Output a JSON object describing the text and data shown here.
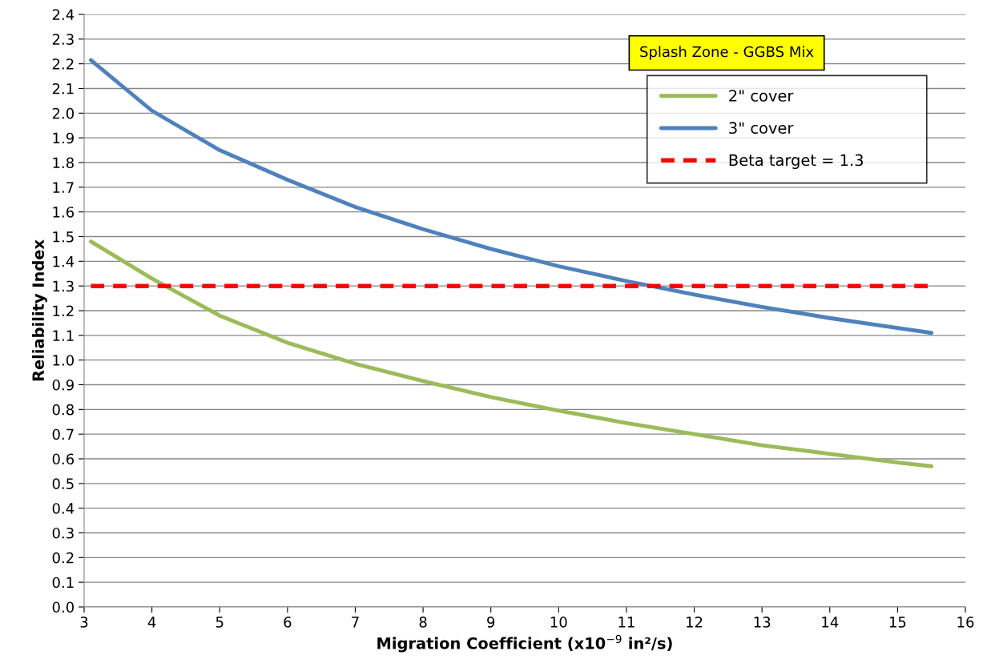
{
  "chart_data": {
    "type": "line",
    "xlabel": "Migration Coefficient (x10$^{−9}$ in²/s)",
    "ylabel": "Reliability Index",
    "legend_title": "Splash Zone - GGBS Mix",
    "xlim": [
      3,
      16
    ],
    "xticks": [
      3,
      4,
      5,
      6,
      7,
      8,
      9,
      10,
      11,
      12,
      13,
      14,
      15,
      16
    ],
    "ylim": [
      0,
      2.4
    ],
    "yticks": [
      {
        "value": 0,
        "label": "0.0"
      },
      {
        "value": 0.1,
        "label": "0.1"
      },
      {
        "value": 0.2,
        "label": "0.2"
      },
      {
        "value": 0.3,
        "label": "0.3"
      },
      {
        "value": 0.4,
        "label": "0.4"
      },
      {
        "value": 0.5,
        "label": "0.5"
      },
      {
        "value": 0.6,
        "label": "0.6"
      },
      {
        "value": 0.7,
        "label": "0.7"
      },
      {
        "value": 0.8,
        "label": "0.8"
      },
      {
        "value": 0.9,
        "label": "0.9"
      },
      {
        "value": 1,
        "label": "1.0"
      },
      {
        "value": 1.1,
        "label": "1.1"
      },
      {
        "value": 1.2,
        "label": "1.2"
      },
      {
        "value": 1.3,
        "label": "1.3"
      },
      {
        "value": 1.4,
        "label": "1.4"
      },
      {
        "value": 1.5,
        "label": "1.5"
      },
      {
        "value": 1.6,
        "label": "1.6"
      },
      {
        "value": 1.7,
        "label": "1.7"
      },
      {
        "value": 1.8,
        "label": "1.8"
      },
      {
        "value": 1.9,
        "label": "1.9"
      },
      {
        "value": 2,
        "label": "2.0"
      },
      {
        "value": 2.1,
        "label": "2.1"
      },
      {
        "value": 2.2,
        "label": "2.2"
      },
      {
        "value": 2.3,
        "label": "2.3"
      },
      {
        "value": 2.4,
        "label": "2.4"
      }
    ],
    "grid": "y",
    "legend": "top right",
    "marker": "none",
    "line_style": "solid",
    "series": [
      {
        "name": "2\" cover",
        "color": "#9bbb59",
        "x": [
          3.1,
          4,
          5,
          6,
          7,
          8,
          9,
          10,
          11,
          12,
          13,
          14,
          15,
          15.5
        ],
        "values": [
          1.48,
          1.33,
          1.18,
          1.07,
          0.985,
          0.915,
          0.85,
          0.795,
          0.745,
          0.7,
          0.655,
          0.62,
          0.585,
          0.57
        ]
      },
      {
        "name": "3\" cover",
        "color": "#4f81bd",
        "x": [
          3.1,
          4,
          5,
          6,
          7,
          8,
          9,
          10,
          11,
          12,
          13,
          14,
          15,
          15.5
        ],
        "values": [
          2.215,
          2.01,
          1.85,
          1.73,
          1.62,
          1.53,
          1.45,
          1.38,
          1.32,
          1.265,
          1.215,
          1.17,
          1.13,
          1.11
        ]
      },
      {
        "name": "Beta target = 1.3",
        "color": "#ff0000",
        "line_style": "dashed",
        "x": [
          3.1,
          15.5
        ],
        "values": [
          1.3,
          1.3
        ]
      }
    ]
  }
}
